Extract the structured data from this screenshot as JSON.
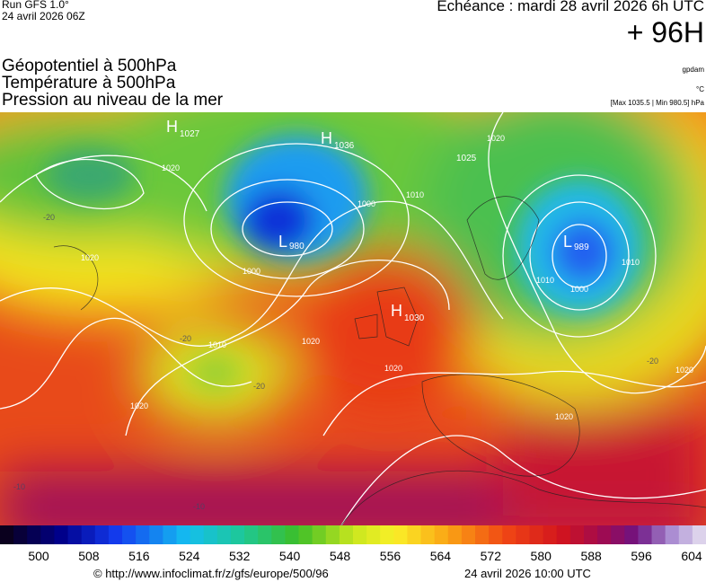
{
  "header": {
    "run": "Run GFS 1.0°",
    "run_date": "24 avril 2026 06Z",
    "echeance": "Echéance : mardi 28 avril 2026 6h UTC",
    "lead": "+ 96H"
  },
  "titles": [
    "Géopotentiel à 500hPa",
    "Température à 500hPa",
    "Pression au niveau de la mer"
  ],
  "units": {
    "geopotential": "gpdam",
    "temperature": "°C",
    "pressure": "[Max 1035.5 | Min 980.5] hPa"
  },
  "centers": [
    {
      "type": "H",
      "value": "1027"
    },
    {
      "type": "H",
      "value": "1036"
    },
    {
      "type": "L",
      "value": "980"
    },
    {
      "type": "H",
      "value": "1030"
    },
    {
      "type": "L",
      "value": "989"
    },
    {
      "type": "",
      "value": "1025"
    }
  ],
  "isobar_labels": [
    "1020",
    "1020",
    "1010",
    "1000",
    "1000",
    "1020",
    "1010",
    "1020",
    "1020",
    "1020",
    "1010",
    "1000",
    "1010",
    "1020",
    "1020"
  ],
  "temperature_labels": [
    "-20",
    "-20",
    "-20",
    "-20",
    "-10",
    "-10"
  ],
  "colorbar": {
    "labels": [
      500,
      508,
      516,
      524,
      532,
      540,
      548,
      556,
      564,
      572,
      580,
      588,
      596,
      604
    ]
  },
  "footer": {
    "url": "© http://www.infoclimat.fr/z/gfs/europe/500/96",
    "date": "24 avril 2026 10:00 UTC"
  }
}
